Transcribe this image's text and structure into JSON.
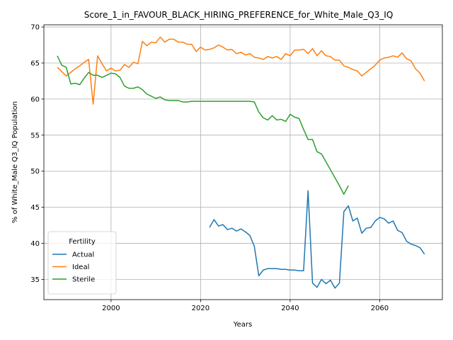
{
  "chart_data": {
    "type": "line",
    "title": "Score_1_in_FAVOUR_BLACK_HIRING_PREFERENCE_for_White_Male_Q3_IQ",
    "xlabel": "Years",
    "ylabel": "% of White_Male Q3_IQ Population",
    "xlim": [
      1985,
      2074
    ],
    "ylim": [
      32.2,
      70.3
    ],
    "xticks": [
      2000,
      2020,
      2040,
      2060
    ],
    "yticks": [
      35,
      40,
      45,
      50,
      55,
      60,
      65,
      70
    ],
    "grid": true,
    "legend": {
      "title": "Fertility",
      "position": "lower-left"
    },
    "series": [
      {
        "name": "Actual",
        "color": "#1f77b4",
        "x": [
          2022,
          2023,
          2024,
          2025,
          2026,
          2027,
          2028,
          2029,
          2030,
          2031,
          2032,
          2033,
          2034,
          2035,
          2036,
          2037,
          2038,
          2039,
          2040,
          2041,
          2042,
          2043,
          2044,
          2045,
          2046,
          2047,
          2048,
          2049,
          2050,
          2051,
          2052,
          2053,
          2054,
          2055,
          2056,
          2057,
          2058,
          2059,
          2060,
          2061,
          2062,
          2063,
          2064,
          2065,
          2066,
          2067,
          2068,
          2069,
          2070
        ],
        "y": [
          42.2,
          43.3,
          42.4,
          42.6,
          41.9,
          42.1,
          41.7,
          42.0,
          41.6,
          41.1,
          39.6,
          35.5,
          36.3,
          36.5,
          36.5,
          36.5,
          36.4,
          36.4,
          36.3,
          36.3,
          36.2,
          36.2,
          47.3,
          34.5,
          33.9,
          35.0,
          34.4,
          34.9,
          33.8,
          34.5,
          44.4,
          45.2,
          43.1,
          43.5,
          41.4,
          42.1,
          42.2,
          43.1,
          43.6,
          43.4,
          42.8,
          43.1,
          41.8,
          41.5,
          40.3,
          39.9,
          39.7,
          39.4,
          38.5
        ]
      },
      {
        "name": "Ideal",
        "color": "#ff7f0e",
        "x": [
          1988,
          1989,
          1990,
          1991,
          1992,
          1993,
          1994,
          1995,
          1996,
          1997,
          1998,
          1999,
          2000,
          2001,
          2002,
          2003,
          2004,
          2005,
          2006,
          2007,
          2008,
          2009,
          2010,
          2011,
          2012,
          2013,
          2014,
          2015,
          2016,
          2017,
          2018,
          2019,
          2020,
          2021,
          2022,
          2023,
          2024,
          2025,
          2026,
          2027,
          2028,
          2029,
          2030,
          2031,
          2032,
          2033,
          2034,
          2035,
          2036,
          2037,
          2038,
          2039,
          2040,
          2041,
          2042,
          2043,
          2044,
          2045,
          2046,
          2047,
          2048,
          2049,
          2050,
          2051,
          2052,
          2053,
          2054,
          2055,
          2056,
          2057,
          2058,
          2059,
          2060,
          2061,
          2062,
          2063,
          2064,
          2065,
          2066,
          2067,
          2068,
          2069,
          2070
        ],
        "y": [
          64.4,
          63.8,
          63.2,
          63.7,
          64.2,
          64.6,
          65.1,
          65.5,
          59.3,
          66.0,
          64.9,
          63.9,
          64.3,
          63.9,
          64.0,
          64.8,
          64.4,
          65.1,
          64.9,
          68.0,
          67.4,
          67.9,
          67.8,
          68.6,
          67.9,
          68.3,
          68.3,
          67.9,
          67.9,
          67.6,
          67.6,
          66.6,
          67.2,
          66.8,
          66.9,
          67.1,
          67.5,
          67.2,
          66.8,
          66.9,
          66.3,
          66.5,
          66.1,
          66.3,
          65.8,
          65.7,
          65.5,
          65.9,
          65.7,
          65.9,
          65.5,
          66.3,
          66.0,
          66.8,
          66.8,
          66.9,
          66.3,
          67.0,
          66.0,
          66.7,
          66.0,
          65.9,
          65.4,
          65.4,
          64.6,
          64.4,
          64.1,
          63.9,
          63.2,
          63.7,
          64.2,
          64.7,
          65.4,
          65.7,
          65.8,
          66.0,
          65.8,
          66.4,
          65.6,
          65.3,
          64.2,
          63.6,
          62.5
        ]
      },
      {
        "name": "Sterile",
        "color": "#2ca02c",
        "x": [
          1988,
          1989,
          1990,
          1991,
          1992,
          1993,
          1994,
          1995,
          1996,
          1997,
          1998,
          1999,
          2000,
          2001,
          2002,
          2003,
          2004,
          2005,
          2006,
          2007,
          2008,
          2009,
          2010,
          2011,
          2012,
          2013,
          2014,
          2015,
          2016,
          2017,
          2018,
          2019,
          2020,
          2021,
          2022,
          2023,
          2024,
          2025,
          2026,
          2027,
          2028,
          2029,
          2030,
          2031,
          2032,
          2033,
          2034,
          2035,
          2036,
          2037,
          2038,
          2039,
          2040,
          2041,
          2042,
          2043,
          2044,
          2045,
          2046,
          2047,
          2048,
          2049,
          2050,
          2051,
          2052,
          2053
        ],
        "y": [
          66.0,
          64.7,
          64.4,
          62.1,
          62.2,
          62.0,
          62.9,
          63.7,
          63.3,
          63.3,
          63.0,
          63.3,
          63.6,
          63.5,
          63.0,
          61.8,
          61.5,
          61.5,
          61.7,
          61.3,
          60.7,
          60.4,
          60.1,
          60.3,
          59.9,
          59.8,
          59.8,
          59.8,
          59.6,
          59.6,
          59.7,
          59.7,
          59.7,
          59.7,
          59.7,
          59.7,
          59.7,
          59.7,
          59.7,
          59.7,
          59.7,
          59.7,
          59.7,
          59.7,
          59.6,
          58.2,
          57.4,
          57.1,
          57.7,
          57.1,
          57.2,
          56.9,
          57.9,
          57.5,
          57.3,
          55.8,
          54.4,
          54.4,
          52.7,
          52.4,
          51.3,
          50.2,
          49.1,
          48.0,
          46.8,
          48.0
        ]
      }
    ]
  }
}
